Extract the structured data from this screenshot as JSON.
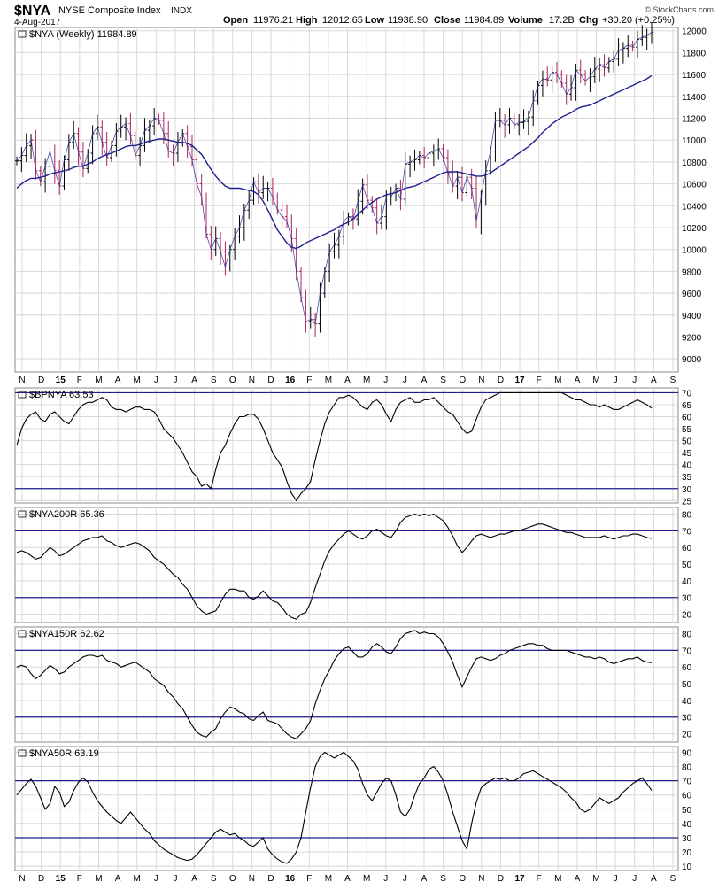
{
  "header": {
    "symbol": "$NYA",
    "name": "NYSE Composite Index",
    "exchange": "INDX",
    "date": "4-Aug-2017",
    "open_label": "Open",
    "open": "11976.21",
    "high_label": "High",
    "high": "12012.65",
    "low_label": "Low",
    "low": "11938.90",
    "close_label": "Close",
    "close": "11984.89",
    "volume_label": "Volume",
    "volume": "17.2B",
    "chg_label": "Chg",
    "chg": "+30.20 (+0.25%)",
    "brand": "© StockCharts.com"
  },
  "colors": {
    "up_bar": "#000000",
    "down_bar": "#b0245b",
    "moving_average": "#1f1f8f",
    "reference_line": "#1f1f8f",
    "grid": "#d8d8d8",
    "indicator_line": "#000000"
  },
  "x_axis": {
    "tick_labels": [
      "N",
      "D",
      "15",
      "F",
      "M",
      "A",
      "M",
      "J",
      "J",
      "A",
      "S",
      "O",
      "N",
      "D",
      "16",
      "F",
      "M",
      "A",
      "M",
      "J",
      "J",
      "A",
      "S",
      "O",
      "N",
      "D",
      "17",
      "F",
      "M",
      "A",
      "M",
      "J",
      "J",
      "A",
      "S"
    ],
    "bold_labels": [
      "15",
      "16",
      "17"
    ]
  },
  "chart_data": [
    {
      "type": "ohlc",
      "panel": "price",
      "label": "$NYA (Weekly) 11984.89",
      "y_ticks": [
        9000,
        9200,
        9400,
        9600,
        9800,
        10000,
        10200,
        10400,
        10600,
        10800,
        11000,
        11200,
        11400,
        11600,
        11800,
        12000
      ],
      "ylim": [
        8880,
        12030
      ],
      "series": [
        {
          "name": "$NYA",
          "values": [
            10810,
            10860,
            10950,
            11000,
            10720,
            10620,
            10760,
            10900,
            10720,
            10580,
            10820,
            10980,
            11060,
            10890,
            10740,
            10880,
            11060,
            11120,
            10980,
            10840,
            10950,
            11080,
            11120,
            11150,
            11040,
            10860,
            10950,
            11090,
            11130,
            11200,
            11180,
            11060,
            10900,
            10880,
            10980,
            11060,
            10940,
            10820,
            10600,
            10480,
            10140,
            10000,
            10100,
            9980,
            9840,
            10000,
            10120,
            10200,
            10360,
            10450,
            10620,
            10520,
            10560,
            10560,
            10480,
            10360,
            10300,
            10260,
            10100,
            9800,
            9560,
            9340,
            9360,
            9320,
            9600,
            9800,
            9980,
            10040,
            10120,
            10260,
            10300,
            10280,
            10440,
            10590,
            10450,
            10380,
            10240,
            10300,
            10480,
            10480,
            10560,
            10460,
            10780,
            10800,
            10820,
            10860,
            10840,
            10880,
            10900,
            10920,
            10840,
            10700,
            10580,
            10660,
            10520,
            10660,
            10560,
            10260,
            10480,
            10720,
            10900,
            11180,
            11180,
            11140,
            11200,
            11140,
            11160,
            11170,
            11210,
            11360,
            11500,
            11560,
            11550,
            11620,
            11600,
            11520,
            11420,
            11480,
            11640,
            11600,
            11540,
            11580,
            11650,
            11690,
            11660,
            11720,
            11740,
            11820,
            11840,
            11870,
            11850,
            11920,
            11940,
            11960,
            11985
          ]
        },
        {
          "name": "40-week MA",
          "values": [
            10560,
            10600,
            10630,
            10650,
            10650,
            10660,
            10670,
            10690,
            10700,
            10710,
            10720,
            10730,
            10750,
            10760,
            10760,
            10780,
            10800,
            10830,
            10850,
            10870,
            10880,
            10900,
            10920,
            10940,
            10950,
            10950,
            10960,
            10980,
            10990,
            11000,
            11010,
            11010,
            11000,
            10990,
            10980,
            10980,
            10970,
            10950,
            10910,
            10870,
            10800,
            10730,
            10670,
            10620,
            10580,
            10560,
            10560,
            10560,
            10550,
            10540,
            10530,
            10500,
            10440,
            10360,
            10270,
            10180,
            10120,
            10060,
            10020,
            10010,
            10030,
            10060,
            10080,
            10100,
            10120,
            10140,
            10160,
            10180,
            10210,
            10230,
            10250,
            10280,
            10320,
            10360,
            10400,
            10430,
            10460,
            10480,
            10500,
            10510,
            10520,
            10540,
            10560,
            10570,
            10580,
            10600,
            10620,
            10640,
            10660,
            10680,
            10700,
            10710,
            10710,
            10710,
            10700,
            10690,
            10680,
            10670,
            10670,
            10680,
            10700,
            10730,
            10760,
            10790,
            10820,
            10850,
            10880,
            10910,
            10940,
            10980,
            11020,
            11070,
            11110,
            11150,
            11180,
            11210,
            11230,
            11250,
            11280,
            11300,
            11310,
            11320,
            11340,
            11360,
            11380,
            11400,
            11420,
            11440,
            11460,
            11480,
            11500,
            11520,
            11540,
            11560,
            11590
          ]
        }
      ]
    },
    {
      "type": "line",
      "panel": "indicator",
      "label": "$BPNYA 63.53",
      "y_ticks": [
        25,
        30,
        35,
        40,
        45,
        50,
        55,
        60,
        65,
        70
      ],
      "ylim": [
        24,
        72
      ],
      "ref_lines": [
        30,
        70
      ],
      "values": [
        48,
        55,
        59,
        61,
        62,
        59,
        58,
        61,
        62,
        60,
        58,
        57,
        60,
        63,
        65,
        66,
        66,
        67,
        68,
        67,
        64,
        63,
        63,
        62,
        63,
        64,
        64,
        63,
        63,
        62,
        59,
        55,
        53,
        51,
        48,
        45,
        41,
        37,
        35,
        31,
        32,
        30,
        38,
        45,
        48,
        53,
        57,
        60,
        60,
        61,
        61,
        59,
        55,
        50,
        45,
        42,
        39,
        33,
        28,
        25,
        28,
        30,
        33,
        42,
        50,
        57,
        62,
        65,
        68,
        68,
        69,
        68,
        66,
        64,
        63,
        66,
        67,
        65,
        61,
        58,
        63,
        66,
        67,
        68,
        66,
        66,
        67,
        67,
        68,
        66,
        64,
        62,
        61,
        58,
        55,
        53,
        54,
        59,
        64,
        67,
        68,
        69,
        70,
        70,
        70,
        70,
        70,
        70,
        70,
        70,
        70,
        70,
        70,
        70,
        70,
        70,
        69,
        68,
        67,
        67,
        66,
        65,
        65,
        64,
        65,
        64,
        63,
        63,
        64,
        65,
        66,
        67,
        66,
        65,
        63.53
      ]
    },
    {
      "type": "line",
      "panel": "indicator",
      "label": "$NYA200R 65.36",
      "y_ticks": [
        20,
        30,
        40,
        50,
        60,
        70,
        80
      ],
      "ylim": [
        15,
        84
      ],
      "ref_lines": [
        30,
        70
      ],
      "values": [
        57,
        58,
        57,
        55,
        53,
        54,
        57,
        60,
        58,
        55,
        56,
        58,
        60,
        62,
        64,
        65,
        66,
        66,
        67,
        64,
        63,
        61,
        60,
        61,
        62,
        63,
        62,
        60,
        58,
        54,
        52,
        50,
        47,
        44,
        42,
        38,
        35,
        30,
        25,
        22,
        20,
        21,
        22,
        27,
        32,
        35,
        35,
        34,
        34,
        30,
        29,
        31,
        34,
        31,
        28,
        27,
        24,
        20,
        18,
        17,
        20,
        21,
        27,
        36,
        44,
        52,
        58,
        62,
        65,
        68,
        70,
        68,
        66,
        65,
        67,
        70,
        71,
        69,
        67,
        66,
        70,
        75,
        78,
        79,
        80,
        79,
        80,
        79,
        80,
        78,
        76,
        72,
        67,
        61,
        57,
        60,
        64,
        67,
        68,
        67,
        66,
        67,
        68,
        68,
        69,
        70,
        70,
        71,
        72,
        73,
        74,
        74,
        73,
        72,
        71,
        70,
        69,
        69,
        68,
        67,
        66,
        66,
        66,
        66,
        67,
        66,
        65,
        66,
        67,
        67,
        68,
        68,
        67,
        66,
        65.36
      ]
    },
    {
      "type": "line",
      "panel": "indicator",
      "label": "$NYA150R 62.62",
      "y_ticks": [
        20,
        30,
        40,
        50,
        60,
        70,
        80
      ],
      "ylim": [
        15,
        84
      ],
      "ref_lines": [
        30,
        70
      ],
      "values": [
        60,
        61,
        60,
        56,
        53,
        55,
        58,
        61,
        59,
        56,
        57,
        60,
        62,
        64,
        66,
        67,
        67,
        66,
        67,
        64,
        63,
        62,
        60,
        61,
        62,
        63,
        61,
        59,
        57,
        53,
        51,
        49,
        45,
        42,
        38,
        35,
        30,
        25,
        21,
        19,
        18,
        21,
        23,
        29,
        33,
        36,
        35,
        33,
        32,
        29,
        28,
        31,
        33,
        28,
        27,
        26,
        23,
        20,
        18,
        17,
        20,
        23,
        28,
        38,
        46,
        53,
        58,
        64,
        68,
        71,
        72,
        69,
        66,
        66,
        68,
        72,
        74,
        72,
        69,
        68,
        72,
        77,
        80,
        81,
        82,
        80,
        81,
        80,
        80,
        78,
        74,
        69,
        63,
        55,
        48,
        54,
        60,
        65,
        66,
        65,
        64,
        65,
        67,
        68,
        70,
        71,
        72,
        73,
        74,
        74,
        73,
        73,
        71,
        70,
        70,
        70,
        70,
        69,
        68,
        67,
        66,
        66,
        65,
        66,
        65,
        63,
        62,
        63,
        64,
        65,
        65,
        66,
        64,
        63,
        62.62
      ]
    },
    {
      "type": "line",
      "panel": "indicator",
      "label": "$NYA50R 63.19",
      "y_ticks": [
        10,
        20,
        30,
        40,
        50,
        60,
        70,
        80,
        90
      ],
      "ylim": [
        7,
        94
      ],
      "ref_lines": [
        30,
        70
      ],
      "values": [
        60,
        64,
        68,
        71,
        66,
        58,
        50,
        54,
        66,
        62,
        52,
        55,
        63,
        69,
        72,
        69,
        62,
        56,
        52,
        48,
        45,
        42,
        40,
        44,
        48,
        44,
        40,
        36,
        33,
        28,
        25,
        22,
        20,
        18,
        16,
        15,
        14,
        15,
        18,
        22,
        26,
        30,
        34,
        36,
        34,
        32,
        33,
        30,
        28,
        25,
        24,
        27,
        30,
        22,
        18,
        15,
        13,
        12,
        15,
        20,
        30,
        48,
        65,
        80,
        87,
        90,
        88,
        86,
        88,
        90,
        87,
        84,
        78,
        68,
        60,
        56,
        62,
        68,
        72,
        70,
        60,
        48,
        45,
        50,
        60,
        68,
        72,
        78,
        80,
        76,
        70,
        60,
        48,
        38,
        28,
        22,
        40,
        55,
        65,
        68,
        70,
        72,
        71,
        72,
        70,
        70,
        72,
        75,
        76,
        77,
        75,
        73,
        71,
        69,
        67,
        65,
        62,
        58,
        55,
        50,
        48,
        50,
        54,
        58,
        56,
        54,
        56,
        58,
        62,
        65,
        68,
        70,
        72,
        68,
        63.19
      ]
    }
  ]
}
